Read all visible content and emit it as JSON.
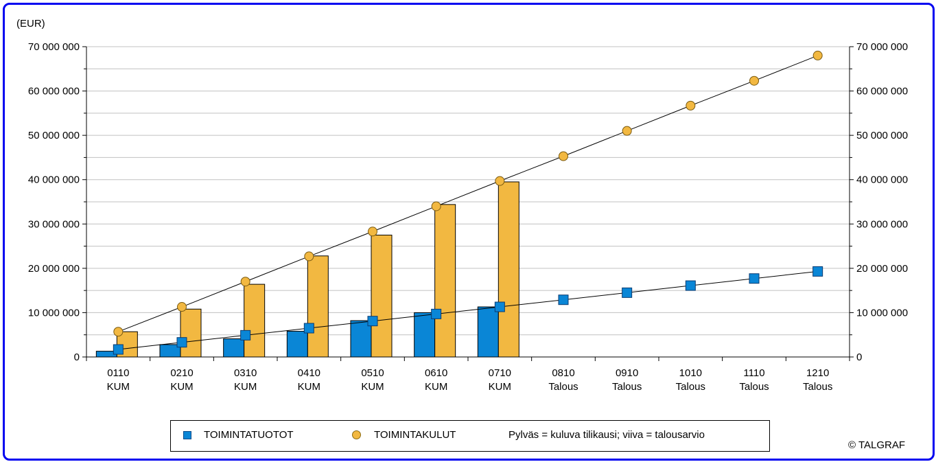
{
  "unit_label": "(EUR)",
  "copyright": "© TALGRAF",
  "legend": {
    "series1": "TOIMINTATUOTOT",
    "series2": "TOIMINTAKULUT",
    "note": "Pylväs = kuluva tilikausi; viiva  = talousarvio"
  },
  "colors": {
    "frame": "#0000f0",
    "income": "#0a86d6",
    "expenses": "#f2b841"
  },
  "chart_data": {
    "type": "bar",
    "categories": [
      [
        "0110",
        "KUM"
      ],
      [
        "0210",
        "KUM"
      ],
      [
        "0310",
        "KUM"
      ],
      [
        "0410",
        "KUM"
      ],
      [
        "0510",
        "KUM"
      ],
      [
        "0610",
        "KUM"
      ],
      [
        "0710",
        "KUM"
      ],
      [
        "0810",
        "Talous"
      ],
      [
        "0910",
        "Talous"
      ],
      [
        "1010",
        "Talous"
      ],
      [
        "1110",
        "Talous"
      ],
      [
        "1210",
        "Talous"
      ]
    ],
    "ylim": [
      0,
      70000000
    ],
    "yticks": [
      "0",
      "10 000 000",
      "20 000 000",
      "30 000 000",
      "40 000 000",
      "50 000 000",
      "60 000 000",
      "70 000 000"
    ],
    "minor_gridline_step": 5000000,
    "bars": [
      {
        "series": "TOIMINTATUOTOT",
        "values": [
          1300000,
          2800000,
          4100000,
          5800000,
          8200000,
          10000000,
          11300000
        ]
      },
      {
        "series": "TOIMINTAKULUT",
        "values": [
          5700000,
          10800000,
          16400000,
          22800000,
          27500000,
          34400000,
          39500000
        ]
      }
    ],
    "lines": [
      {
        "series": "TOIMINTATUOTOT",
        "marker": "square",
        "values": [
          1700000,
          3300000,
          4900000,
          6500000,
          8100000,
          9700000,
          11300000,
          12900000,
          14500000,
          16100000,
          17700000,
          19300000
        ]
      },
      {
        "series": "TOIMINTAKULUT",
        "marker": "circle",
        "values": [
          5700000,
          11300000,
          17000000,
          22700000,
          28300000,
          34000000,
          39700000,
          45300000,
          51000000,
          56700000,
          62300000,
          68000000
        ]
      }
    ],
    "grid": true,
    "secondary_axis": true
  }
}
